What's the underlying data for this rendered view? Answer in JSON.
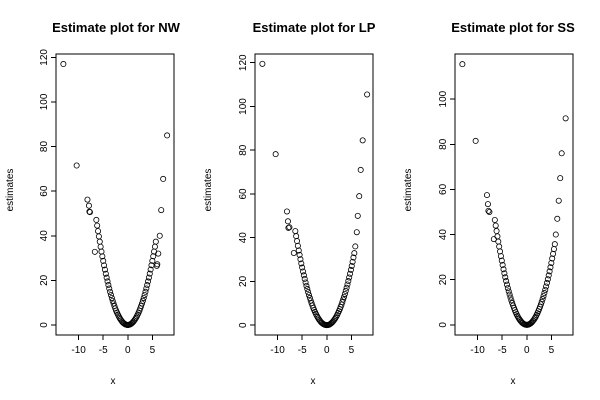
{
  "chart_data": [
    {
      "type": "scatter",
      "title": "Estimate plot for NW",
      "xlabel": "x",
      "ylabel": "estimates",
      "xlim": [
        -14.6,
        9.4
      ],
      "ylim": [
        -4.5,
        121.5
      ],
      "xticks": [
        -10,
        -5,
        0,
        5
      ],
      "yticks": [
        0,
        20,
        40,
        60,
        80,
        100,
        120
      ],
      "grid": false,
      "outliers": [
        {
          "x": -13.1,
          "y": 117
        },
        {
          "x": -10.4,
          "y": 71.5
        },
        {
          "x": -8.2,
          "y": 56.2
        },
        {
          "x": -7.9,
          "y": 53.5
        },
        {
          "x": -7.8,
          "y": 50.8
        },
        {
          "x": -7.7,
          "y": 50.6
        },
        {
          "x": -6.7,
          "y": 32.8
        },
        {
          "x": 5.9,
          "y": 26.5
        },
        {
          "x": 6.0,
          "y": 27.2
        },
        {
          "x": 6.2,
          "y": 32.0
        },
        {
          "x": 6.5,
          "y": 40.0
        },
        {
          "x": 6.8,
          "y": 51.5
        },
        {
          "x": 7.2,
          "y": 65.5
        },
        {
          "x": 8.0,
          "y": 85.0
        }
      ],
      "curve": {
        "coef": 1.15,
        "xmin": -6.4,
        "xmax": 5.7,
        "n": 70
      }
    },
    {
      "type": "scatter",
      "title": "Estimate plot for LP",
      "xlabel": "x",
      "ylabel": "estimates",
      "xlim": [
        -14.6,
        9.4
      ],
      "ylim": [
        -4.5,
        124
      ],
      "xticks": [
        -10,
        -5,
        0,
        5
      ],
      "yticks": [
        0,
        20,
        40,
        60,
        80,
        100,
        120
      ],
      "grid": false,
      "outliers": [
        {
          "x": -13.1,
          "y": 119.5
        },
        {
          "x": -10.4,
          "y": 78.2
        },
        {
          "x": -8.1,
          "y": 52.0
        },
        {
          "x": -7.9,
          "y": 47.5
        },
        {
          "x": -7.8,
          "y": 44.5
        },
        {
          "x": -7.6,
          "y": 44.8
        },
        {
          "x": -6.7,
          "y": 33.0
        },
        {
          "x": 5.8,
          "y": 36.0
        },
        {
          "x": 6.1,
          "y": 42.5
        },
        {
          "x": 6.3,
          "y": 50.0
        },
        {
          "x": 6.6,
          "y": 59.0
        },
        {
          "x": 6.9,
          "y": 71.0
        },
        {
          "x": 7.3,
          "y": 84.5
        },
        {
          "x": 8.2,
          "y": 105.5
        }
      ],
      "curve": {
        "coef": 1.05,
        "xmin": -6.4,
        "xmax": 5.6,
        "n": 70
      }
    },
    {
      "type": "scatter",
      "title": "Estimate plot for SS",
      "xlabel": "x",
      "ylabel": "estimates",
      "xlim": [
        -14.6,
        9.4
      ],
      "ylim": [
        -4.5,
        120
      ],
      "xticks": [
        -10,
        -5,
        0,
        5
      ],
      "yticks": [
        0,
        20,
        40,
        60,
        80,
        100
      ],
      "grid": false,
      "outliers": [
        {
          "x": -13.1,
          "y": 115.5
        },
        {
          "x": -10.4,
          "y": 81.5
        },
        {
          "x": -8.1,
          "y": 57.5
        },
        {
          "x": -7.9,
          "y": 53.5
        },
        {
          "x": -7.8,
          "y": 50.5
        },
        {
          "x": -7.6,
          "y": 50.0
        },
        {
          "x": -6.7,
          "y": 38.0
        },
        {
          "x": 5.9,
          "y": 40.0
        },
        {
          "x": 6.2,
          "y": 47.0
        },
        {
          "x": 6.5,
          "y": 55.0
        },
        {
          "x": 6.8,
          "y": 65.0
        },
        {
          "x": 7.1,
          "y": 76.0
        },
        {
          "x": 7.9,
          "y": 91.5
        }
      ],
      "curve": {
        "coef": 1.1,
        "xmin": -6.5,
        "xmax": 5.7,
        "n": 70
      }
    }
  ]
}
